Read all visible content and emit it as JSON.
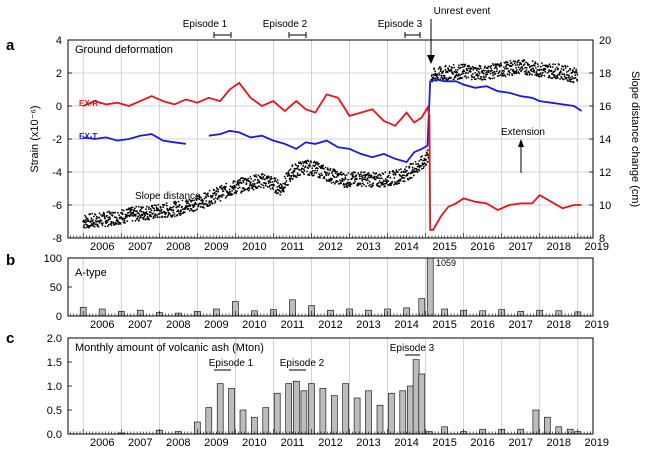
{
  "panels": [
    {
      "letter": "a",
      "title": "Ground deformation",
      "ylabel": "Strain (x10⁻⁶)",
      "ylabel_right": "Slope distance change (cm)",
      "yticks": [
        "4",
        "2",
        "0",
        "-2",
        "-4",
        "-6",
        "-8"
      ],
      "yticks_right": [
        "20",
        "18",
        "16",
        "14",
        "12",
        "10",
        "8"
      ]
    },
    {
      "letter": "b",
      "title": "A-type",
      "yticks": [
        "100",
        "50",
        "0"
      ],
      "peak_label": "1059"
    },
    {
      "letter": "c",
      "title": "Monthly amount of volcanic ash (Mton)",
      "yticks": [
        "2.0",
        "1.5",
        "1.0",
        "0.5",
        "0.0"
      ]
    }
  ],
  "years": [
    "2006",
    "2007",
    "2008",
    "2009",
    "2010",
    "2011",
    "2012",
    "2013",
    "2014",
    "2015",
    "2016",
    "2017",
    "2018",
    "2019"
  ],
  "annotations": {
    "episode1": "Episode 1",
    "episode2": "Episode 2",
    "episode3": "Episode 3",
    "unrest": "Unrest event",
    "extension": "Extension",
    "slope_distance": "Slope distance",
    "exr": "EX-R",
    "ext": "EX-T"
  },
  "colors": {
    "exr": "#e8141c",
    "ext": "#1c1cd6",
    "scatter": "#000000",
    "grid": "#c8c8c8",
    "unrest_line": "#e8141c"
  },
  "chart_data": [
    {
      "type": "line",
      "title": "Ground deformation",
      "ylabel": "Strain (x10⁻⁶)",
      "ylim": [
        -8,
        4
      ],
      "y2label": "Slope distance change (cm)",
      "y2lim": [
        8,
        20
      ],
      "xlim": [
        2005.6,
        2019.4
      ],
      "series": [
        {
          "name": "EX-R",
          "x": [
            2006.0,
            2006.3,
            2006.6,
            2006.9,
            2007.2,
            2007.5,
            2007.8,
            2008.1,
            2008.4,
            2008.7,
            2009.0,
            2009.3,
            2009.6,
            2009.85,
            2010.1,
            2010.4,
            2010.7,
            2011.0,
            2011.3,
            2011.6,
            2011.85,
            2012.1,
            2012.4,
            2012.7,
            2013.0,
            2013.3,
            2013.6,
            2013.9,
            2014.2,
            2014.5,
            2014.7,
            2014.9,
            2015.05,
            2015.1,
            2015.12,
            2015.2,
            2015.4,
            2015.6,
            2015.8,
            2016.0,
            2016.3,
            2016.6,
            2016.9,
            2017.2,
            2017.5,
            2017.8,
            2018.0,
            2018.3,
            2018.6,
            2018.9,
            2019.1
          ],
          "y": [
            0.0,
            0.3,
            0.1,
            0.2,
            0.0,
            0.3,
            0.6,
            0.3,
            0.1,
            0.4,
            0.2,
            0.5,
            0.3,
            1.0,
            1.4,
            0.5,
            0.0,
            0.3,
            -0.3,
            0.3,
            -0.2,
            -0.4,
            0.7,
            0.5,
            -0.6,
            -0.4,
            -0.2,
            -0.9,
            -1.2,
            -0.4,
            -1.0,
            -0.7,
            -0.1,
            -0.6,
            -7.5,
            -7.5,
            -6.7,
            -6.1,
            -5.9,
            -5.6,
            -5.8,
            -5.9,
            -6.3,
            -6.0,
            -5.9,
            -5.9,
            -5.4,
            -5.8,
            -6.2,
            -6.0,
            -6.0
          ]
        },
        {
          "name": "EX-T",
          "x": [
            2006.0,
            2006.3,
            2006.6,
            2006.9,
            2007.2,
            2007.5,
            2007.8,
            2008.1,
            2008.4,
            2008.7,
            2009.0,
            2009.3,
            2009.6,
            2009.85,
            2010.1,
            2010.4,
            2010.7,
            2011.0,
            2011.3,
            2011.6,
            2011.85,
            2012.1,
            2012.4,
            2012.7,
            2013.0,
            2013.3,
            2013.6,
            2013.9,
            2014.2,
            2014.5,
            2014.7,
            2014.9,
            2015.05,
            2015.12,
            2015.3,
            2015.5,
            2015.8,
            2016.0,
            2016.3,
            2016.6,
            2016.9,
            2017.2,
            2017.5,
            2017.8,
            2018.0,
            2018.3,
            2018.6,
            2018.9,
            2019.1
          ],
          "y": [
            -1.9,
            -2.0,
            -1.9,
            -2.1,
            -2.0,
            -1.8,
            -1.7,
            -2.1,
            -2.2,
            -2.3,
            null,
            -1.8,
            -1.7,
            -1.5,
            -1.6,
            -1.9,
            -1.8,
            -2.1,
            -2.3,
            -2.6,
            -2.2,
            -2.3,
            -2.1,
            -2.5,
            -2.6,
            -2.9,
            -3.1,
            -2.9,
            -3.2,
            -3.4,
            -2.8,
            -2.6,
            -2.4,
            1.5,
            1.6,
            1.5,
            1.5,
            1.3,
            1.1,
            1.2,
            0.9,
            0.8,
            0.6,
            0.5,
            0.3,
            0.2,
            0.1,
            0.0,
            -0.3
          ]
        },
        {
          "name": "Slope distance",
          "type": "scatter",
          "x": [
            2006.0,
            2006.5,
            2007.0,
            2007.5,
            2008.0,
            2008.5,
            2008.8,
            2009.1,
            2009.5,
            2009.9,
            2010.3,
            2010.8,
            2011.2,
            2011.5,
            2011.8,
            2012.1,
            2012.5,
            2012.9,
            2013.3,
            2013.7,
            2014.1,
            2014.5,
            2014.9,
            2015.1,
            2015.15,
            2015.5,
            2016.0,
            2016.5,
            2017.0,
            2017.5,
            2018.0,
            2018.5,
            2019.0
          ],
          "y": [
            9.0,
            9.1,
            9.3,
            9.5,
            9.6,
            9.8,
            10.0,
            10.2,
            10.6,
            11.0,
            11.3,
            11.5,
            11.0,
            12.0,
            12.3,
            12.2,
            11.8,
            11.5,
            11.6,
            11.5,
            11.6,
            11.9,
            12.5,
            13.0,
            17.8,
            18.0,
            18.1,
            18.0,
            18.2,
            18.4,
            18.2,
            18.1,
            17.8
          ]
        }
      ]
    },
    {
      "type": "bar",
      "title": "A-type",
      "ylim": [
        0,
        100
      ],
      "peak": {
        "x": 2015.12,
        "value": 1059,
        "label": "1059"
      },
      "x": [
        2006.0,
        2006.5,
        2007.0,
        2007.5,
        2008.0,
        2008.5,
        2009.0,
        2009.5,
        2010.0,
        2010.5,
        2011.0,
        2011.5,
        2012.0,
        2012.5,
        2013.0,
        2013.5,
        2014.0,
        2014.5,
        2014.9,
        2015.12,
        2015.5,
        2016.0,
        2016.5,
        2017.0,
        2017.5,
        2018.0,
        2018.5,
        2019.0
      ],
      "values": [
        15,
        12,
        8,
        10,
        6,
        5,
        8,
        12,
        25,
        9,
        11,
        28,
        18,
        10,
        12,
        10,
        12,
        14,
        30,
        100,
        12,
        10,
        9,
        11,
        8,
        10,
        9,
        7
      ]
    },
    {
      "type": "bar",
      "title": "Monthly amount of volcanic ash (Mton)",
      "ylim": [
        0,
        2.0
      ],
      "x": [
        2006.0,
        2006.5,
        2007.0,
        2007.5,
        2008.0,
        2008.5,
        2009.0,
        2009.3,
        2009.6,
        2009.9,
        2010.2,
        2010.5,
        2010.8,
        2011.1,
        2011.4,
        2011.6,
        2011.8,
        2012.0,
        2012.3,
        2012.6,
        2012.9,
        2013.2,
        2013.5,
        2013.8,
        2014.1,
        2014.4,
        2014.6,
        2014.75,
        2014.9,
        2015.1,
        2015.5,
        2016.0,
        2016.5,
        2017.0,
        2017.5,
        2017.9,
        2018.2,
        2018.5,
        2018.8,
        2019.0
      ],
      "values": [
        0.0,
        0.0,
        0.02,
        0.0,
        0.08,
        0.05,
        0.25,
        0.55,
        1.05,
        0.95,
        0.5,
        0.35,
        0.55,
        0.85,
        1.05,
        1.1,
        0.9,
        1.05,
        0.95,
        0.8,
        1.05,
        0.75,
        0.9,
        0.6,
        0.85,
        0.9,
        1.0,
        1.55,
        1.25,
        0.05,
        0.15,
        0.05,
        0.1,
        0.1,
        0.1,
        0.5,
        0.35,
        0.15,
        0.1,
        0.05
      ]
    }
  ]
}
